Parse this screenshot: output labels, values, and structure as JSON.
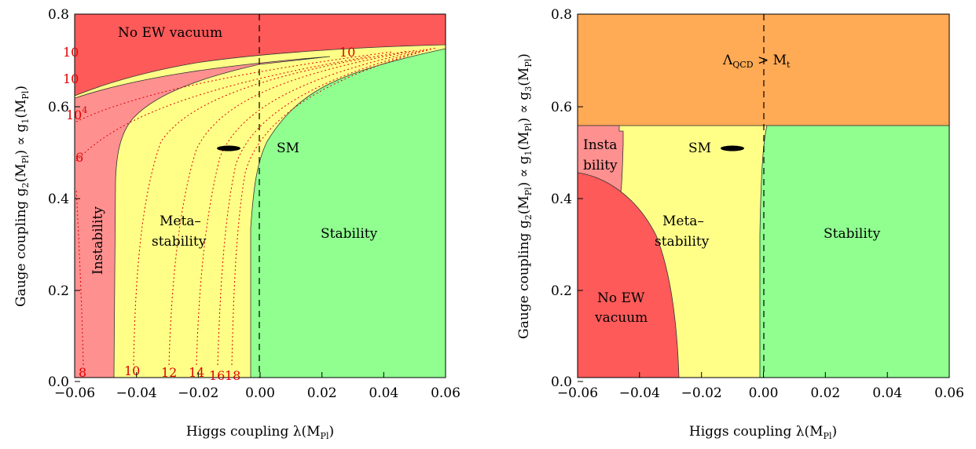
{
  "chart_data": [
    {
      "type": "region-map",
      "xlabel_main": "Higgs coupling λ(M",
      "xlabel_sub": "Pl",
      "xlabel_tail": ")",
      "ylabel_parts": [
        "Gauge coupling g",
        "2",
        "(M",
        "Pl",
        ") ∝ g",
        "1",
        "(M",
        "Pl",
        ")"
      ],
      "xlim": [
        -0.06,
        0.06
      ],
      "ylim": [
        0,
        0.8
      ],
      "xticks": [
        "−0.06",
        "−0.04",
        "−0.02",
        "0.00",
        "0.02",
        "0.04",
        "0.06"
      ],
      "yticks": [
        "0.0",
        "0.2",
        "0.4",
        "0.6",
        "0.8"
      ],
      "colors": {
        "no_ew": "#ff5a5a",
        "instability": "#ff9090",
        "metastability": "#ffff88",
        "stability": "#90ff90"
      },
      "regions": {
        "no_ew_vacuum": "No EW vacuum",
        "instability": "Instability",
        "metastability_1": "Meta–",
        "metastability_2": "stability",
        "stability": "Stability",
        "sm": "SM"
      },
      "sm_point": {
        "x": -0.01,
        "y": 0.505
      },
      "contour_labels": [
        "8",
        "10",
        "12",
        "14",
        "16",
        "18",
        "10",
        "6",
        "10",
        "4",
        "10",
        "10",
        "10"
      ]
    },
    {
      "type": "region-map",
      "xlabel_main": "Higgs coupling λ(M",
      "xlabel_sub": "Pl",
      "xlabel_tail": ")",
      "ylabel_parts": [
        "Gauge coupling g",
        "2",
        "(M",
        "Pl",
        ") ∝ g",
        "1",
        "(M",
        "Pl",
        ") ∝ g",
        "3",
        "(M",
        "Pl",
        ")"
      ],
      "xlim": [
        -0.06,
        0.06
      ],
      "ylim": [
        0,
        0.8
      ],
      "xticks": [
        "−0.06",
        "−0.04",
        "−0.02",
        "0.00",
        "0.02",
        "0.04",
        "0.06"
      ],
      "yticks": [
        "0.0",
        "0.2",
        "0.4",
        "0.6",
        "0.8"
      ],
      "colors": {
        "qcd": "#ffaa55",
        "no_ew": "#ff5a5a",
        "instability": "#ff9090",
        "metastability": "#ffff88",
        "stability": "#90ff90"
      },
      "regions": {
        "qcd_main": "Λ",
        "qcd_sub": "QCD",
        "qcd_mid": " > M",
        "qcd_sub2": "t",
        "instability_1": "Insta",
        "instability_2": "bility",
        "no_ew_1": "No EW",
        "no_ew_2": "vacuum",
        "metastability_1": "Meta–",
        "metastability_2": "stability",
        "stability": "Stability",
        "sm": "SM"
      },
      "sm_point": {
        "x": -0.01,
        "y": 0.505
      }
    }
  ]
}
